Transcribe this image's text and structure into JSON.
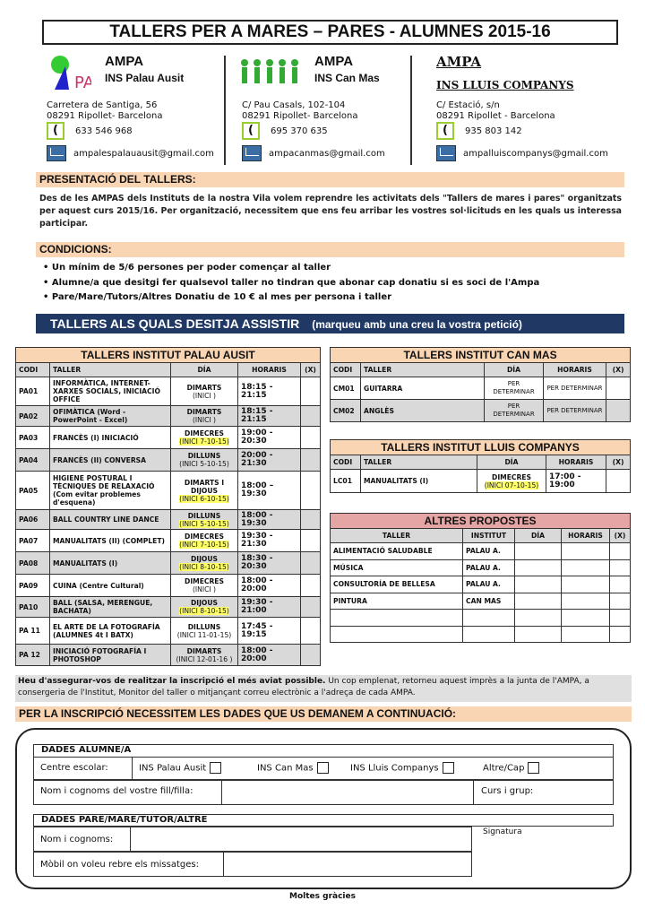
{
  "title": "TALLERS PER A MARES – PARES - ALUMNES 2015-16",
  "contacts": [
    {
      "ampa": "AMPA",
      "ins": "INS Palau Ausit",
      "addr1": "Carretera de Santiga, 56",
      "addr2": "08291 Ripollet- Barcelona",
      "phone": "633 546 968",
      "email": "ampalespalauausit@gmail.com"
    },
    {
      "ampa": "AMPA",
      "ins": "INS Can Mas",
      "addr1": "C/ Pau Casals, 102-104",
      "addr2": "08291 Ripollet- Barcelona",
      "phone": "695 370 635",
      "email": "ampacanmas@gmail.com"
    },
    {
      "ampa": "AMPA",
      "ins": "INS LLUIS COMPANYS",
      "addr1": "C/ Estació, s/n",
      "addr2": "08291 Ripollet - Barcelona",
      "phone": "935 803 142",
      "email": "ampalluiscompanys@gmail.com"
    }
  ],
  "presentacio": {
    "heading": "PRESENTACIÓ DEL TALLERS:",
    "text": "Des de les AMPAS dels Instituts de la nostra Vila volem reprendre les activitats dels \"Tallers de mares i pares\" organitzats per aquest curs 2015/16. Per organització, necessitem que ens feu arribar les vostres sol·licituds en les quals us interessa participar."
  },
  "condicions": {
    "heading": "CONDICIONS:",
    "items": [
      "Un mínim de 5/6 persones per poder començar al taller",
      "Alumne/a que desitgi fer qualsevol taller no tindran que abonar cap donatiu si es soci de l'Ampa",
      "Pare/Mare/Tutors/Altres Donatiu de 10 € al mes per persona i taller"
    ]
  },
  "banner": {
    "title": "TALLERS ALS QUALS DESITJA ASSISTIR",
    "subtitle": "(marqueu amb una creu la vostra petició)"
  },
  "columns": {
    "codi": "CODI",
    "taller": "TALLER",
    "dia": "DÍA",
    "horaris": "HORARIS",
    "x": "(X)",
    "institut": "INSTITUT"
  },
  "palau": {
    "title": "TALLERS INSTITUT PALAU AUSIT",
    "rows": [
      {
        "codi": "PA01",
        "taller": "INFORMÀTICA, INTERNET- XARXES SOCIALS, INICIACIÓ OFFICE",
        "dia": "DIMARTS",
        "inici": "(INICI        )",
        "hl": false,
        "hora": "18:15 - 21:15"
      },
      {
        "codi": "PA02",
        "taller": "OFIMÀTICA (Word - PowerPoint - Excel)",
        "dia": "DIMARTS",
        "inici": "(INICI        )",
        "hl": false,
        "hora": "18:15 - 21:15"
      },
      {
        "codi": "PA03",
        "taller": "FRANCÈS (I) INICIACIÓ",
        "dia": "DIMECRES",
        "inici": "(INICI 7-10-15)",
        "hl": true,
        "hora": "19:00 - 20:30"
      },
      {
        "codi": "PA04",
        "taller": "FRANCÈS (II) CONVERSA",
        "dia": "DILLUNS",
        "inici": "(INICI 5-10-15)",
        "hl": false,
        "hora": "20:00 - 21:30"
      },
      {
        "codi": "PA05",
        "taller": "HIGIENE POSTURAL I TÈCNIQUES DE RELAXACIÓ (Com evitar problemes d'esquena)",
        "dia": "DIMARTS I DIJOUS",
        "inici": "(INICI 6-10-15)",
        "hl": true,
        "hora": "18:00 –19:30"
      },
      {
        "codi": "PA06",
        "taller": "BALL COUNTRY LINE DANCE",
        "dia": "DILLUNS",
        "inici": "(INICI 5-10-15)",
        "hl": true,
        "hora": "18:00 - 19:30"
      },
      {
        "codi": "PA07",
        "taller": "MANUALITATS (II) (COMPLET)",
        "dia": "DIMECRES",
        "inici": "(INICI 7-10-15)",
        "hl": true,
        "hora": "19:30 - 21:30"
      },
      {
        "codi": "PA08",
        "taller": "MANUALITATS (I)",
        "dia": "DIJOUS",
        "inici": "(INICI 8-10-15)",
        "hl": true,
        "hora": "18:30 - 20:30"
      },
      {
        "codi": "PA09",
        "taller": "CUINA (Centre Cultural)",
        "dia": "DIMECRES",
        "inici": "(INICI        )",
        "hl": false,
        "hora": "18:00 - 20:00"
      },
      {
        "codi": "PA10",
        "taller": "BALL (SALSA, MERENGUE, BACHATA)",
        "dia": "DIJOUS",
        "inici": "(INICI 8-10-15)",
        "hl": true,
        "hora": "19:30 - 21:00"
      },
      {
        "codi": "PA 11",
        "taller": "EL ARTE DE LA FOTOGRAFÍA (ALUMNES 4t I BATX)",
        "dia": "DILLUNS",
        "inici": "(INICI 11-01-15)",
        "hl": false,
        "hora": "17:45 - 19:15"
      },
      {
        "codi": "PA 12",
        "taller": "INICIACIÓ FOTOGRAFÍA I PHOTOSHOP",
        "dia": "DIMARTS",
        "inici": "(INICI 12-01-16 )",
        "hl": false,
        "hora": "18:00 - 20:00"
      }
    ]
  },
  "canmas": {
    "title": "TALLERS INSTITUT CAN MAS",
    "rows": [
      {
        "codi": "CM01",
        "taller": "GUITARRA",
        "dia": "PER DETERMINAR",
        "hora": "PER DETERMINAR"
      },
      {
        "codi": "CM02",
        "taller": "ANGLÈS",
        "dia": "PER DETERMINAR",
        "hora": "PER DETERMINAR"
      }
    ]
  },
  "lluis": {
    "title": "TALLERS INSTITUT LLUIS COMPANYS",
    "rows": [
      {
        "codi": "LC01",
        "taller": "MANUALITATS (I)",
        "dia": "DIMECRES",
        "inici": "(INICI 07-10-15)",
        "hora": "17:00 - 19:00"
      }
    ]
  },
  "altres": {
    "title": "ALTRES PROPOSTES",
    "rows": [
      {
        "taller": "ALIMENTACIÓ SALUDABLE",
        "institut": "PALAU A."
      },
      {
        "taller": "MÚSICA",
        "institut": "PALAU A."
      },
      {
        "taller": "CONSULTORÍA DE BELLESA",
        "institut": "PALAU A."
      },
      {
        "taller": "PINTURA",
        "institut": "CAN MAS"
      },
      {
        "taller": "",
        "institut": ""
      },
      {
        "taller": "",
        "institut": ""
      }
    ]
  },
  "note": {
    "bold": "Heu d'assegurar-vos de realitzar la inscripció el més aviat possible.",
    "text": " Un cop emplenat, retorneu aquest imprès a la junta de l'AMPA, a consergeria de l'Institut, Monitor del taller o mitjançant correu electrònic a l'adreça de cada AMPA."
  },
  "inscripcio": "PER LA INSCRIPCIÓ NECESSITEM LES DADES QUE US DEMANEM A CONTINUACIÓ:",
  "form": {
    "alumne_heading": "DADES ALUMNE/A",
    "centre_label": "Centre escolar:",
    "options": [
      "INS Palau Ausit",
      "INS Can Mas",
      "INS Lluis Companys",
      "Altre/Cap"
    ],
    "nom_fill_label": "Nom i cognoms del vostre fill/filla:",
    "curs_label": "Curs i grup:",
    "pare_heading": "DADES PARE/MARE/TUTOR/ALTRE",
    "nom_label": "Nom i cognoms:",
    "mobil_label": "Mòbil on voleu rebre els missatges:",
    "signatura": "Signatura"
  },
  "thanks": "Moltes gràcies",
  "colors": {
    "peach": "#f9d5b4",
    "navy": "#1f3864",
    "gray": "#d9d9d9",
    "red": "#e6a5a5",
    "highlight": "#ffff66"
  }
}
